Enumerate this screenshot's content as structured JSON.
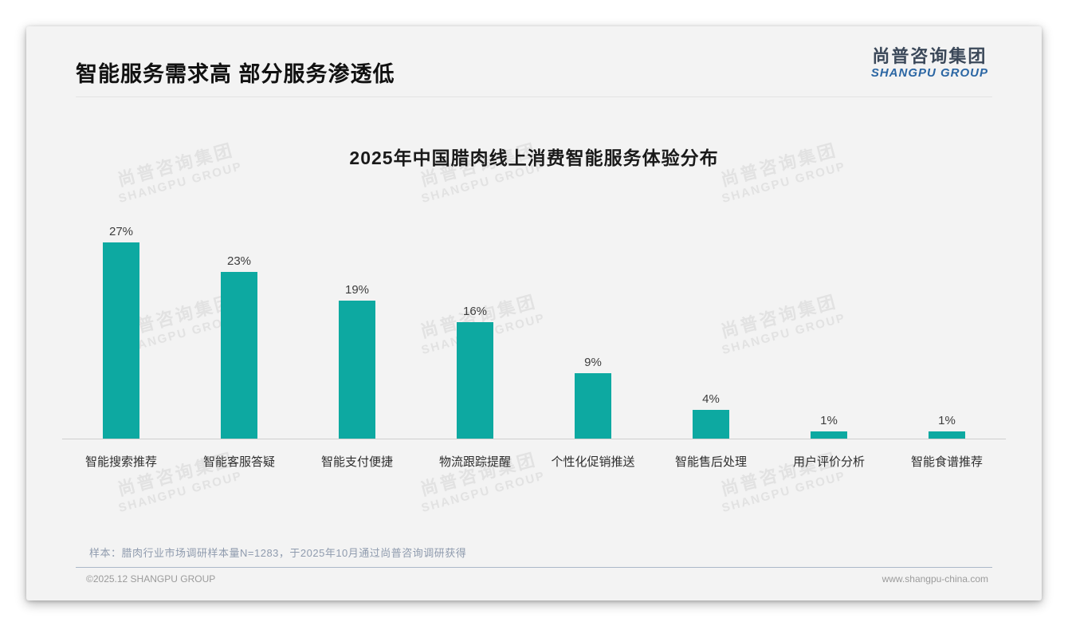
{
  "page": {
    "title": "智能服务需求高 部分服务渗透低",
    "logo": {
      "cn": "尚普咨询集团",
      "en": "SHANGPU GROUP"
    },
    "watermark": {
      "cn": "尚普咨询集团",
      "en": "SHANGPU GROUP"
    },
    "note": "样本：腊肉行业市场调研样本量N=1283，于2025年10月通过尚普咨询调研获得",
    "footer": {
      "left": "©2025.12 SHANGPU GROUP",
      "right": "www.shangpu-china.com"
    }
  },
  "chart_data": {
    "type": "bar",
    "title": "2025年中国腊肉线上消费智能服务体验分布",
    "categories": [
      "智能搜索推荐",
      "智能客服答疑",
      "智能支付便捷",
      "物流跟踪提醒",
      "个性化促销推送",
      "智能售后处理",
      "用户评价分析",
      "智能食谱推荐"
    ],
    "values": [
      27,
      23,
      19,
      16,
      9,
      4,
      1,
      1
    ],
    "unit": "%",
    "bar_color": "#0da9a1",
    "value_label_color": "#3d3d3d",
    "ylim": [
      0,
      30
    ],
    "grid": false,
    "legend": "none",
    "value_labels": true,
    "xlabel": "",
    "ylabel": ""
  }
}
